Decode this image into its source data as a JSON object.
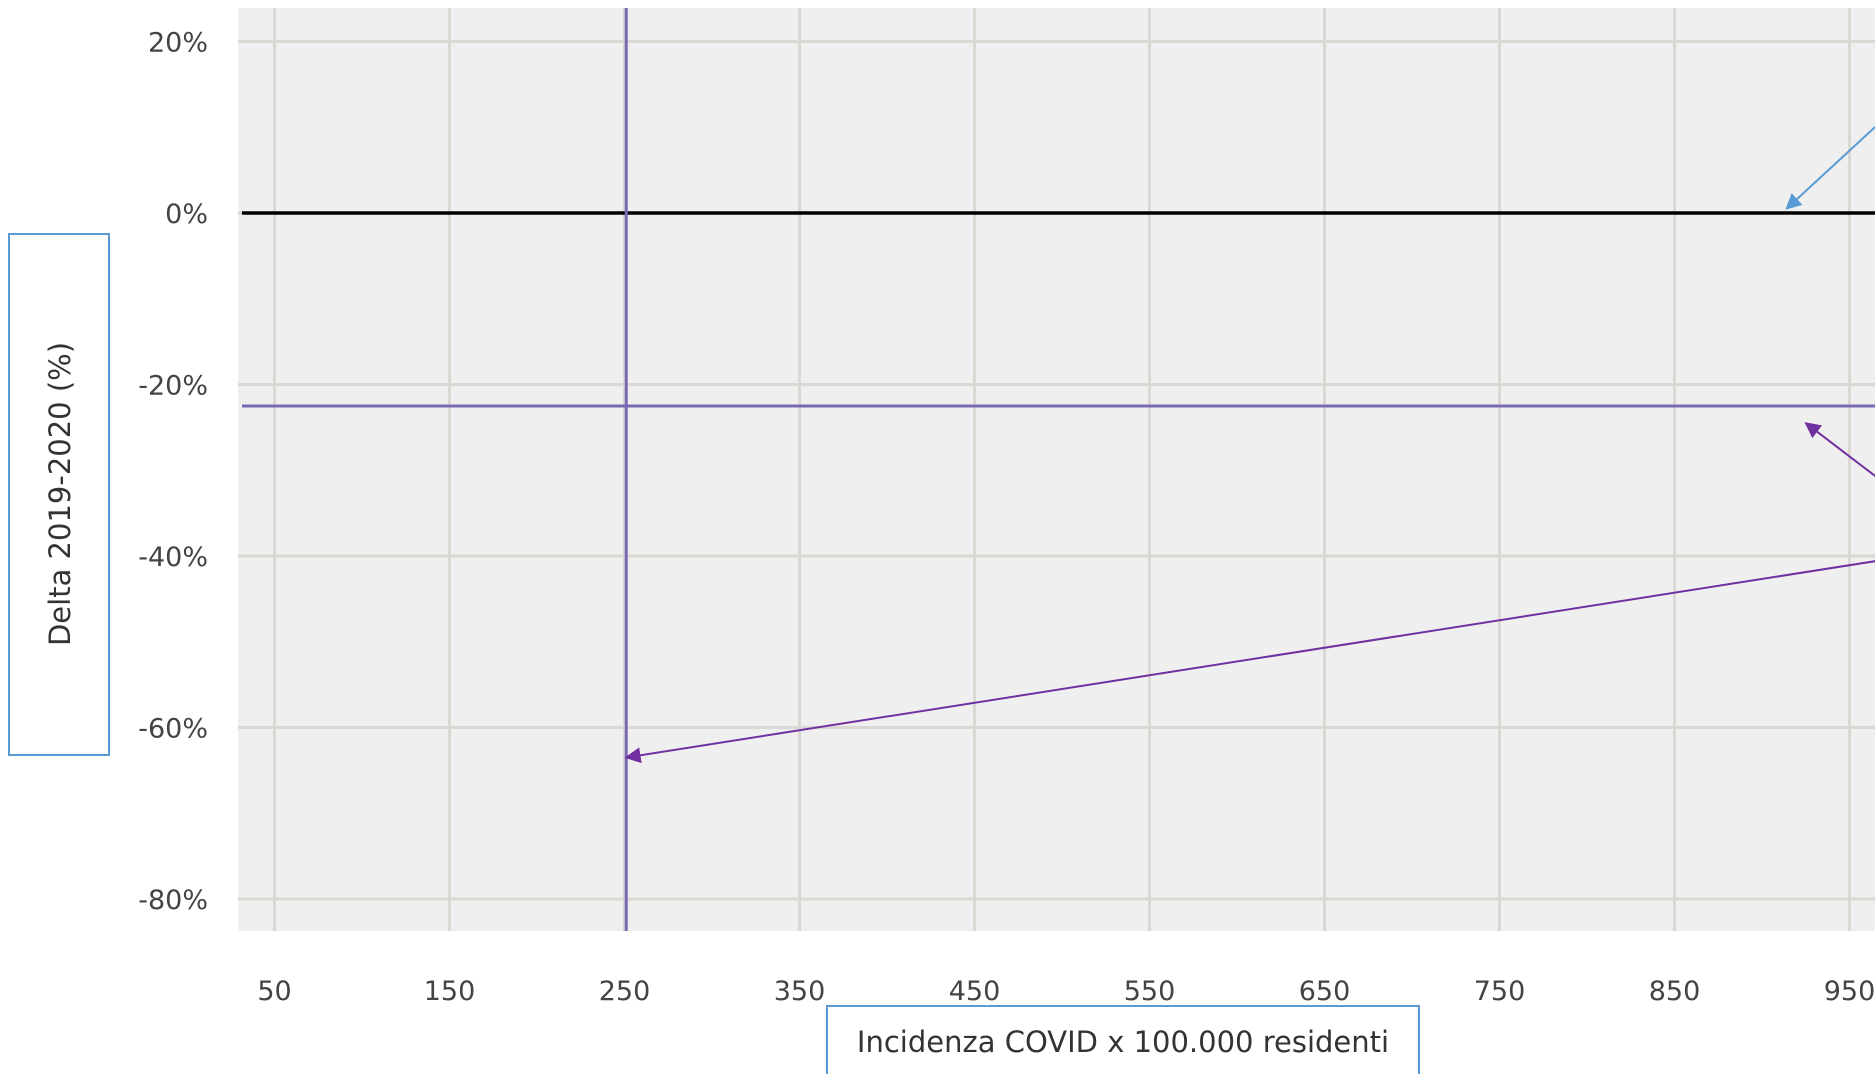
{
  "chart_data": {
    "type": "scatter",
    "title": "",
    "xlabel": "Incidenza COVID x 100.000 residenti",
    "ylabel": "Delta 2019-2020 (%)",
    "xlim": [
      30,
      1000
    ],
    "ylim": [
      -0.84,
      0.24
    ],
    "x_ticks": [
      50,
      150,
      250,
      350,
      450,
      550,
      650,
      750,
      850,
      950
    ],
    "x_tick_labels": [
      "50",
      "150",
      "250",
      "350",
      "450",
      "550",
      "650",
      "750",
      "850",
      "950"
    ],
    "y_ticks": [
      0.2,
      0,
      -0.2,
      -0.4,
      -0.6,
      -0.8
    ],
    "y_tick_labels": [
      "20%",
      "0%",
      "-20%",
      "-40%",
      "-60%",
      "-80%"
    ],
    "grid": true,
    "background": "#efefef",
    "grid_color": "#d9d8d2",
    "reference_lines": [
      {
        "orientation": "horizontal",
        "value": 0,
        "color": "#000000",
        "style": "solid"
      },
      {
        "orientation": "horizontal",
        "value": -0.225,
        "color": "#7b68b5",
        "style": "solid"
      },
      {
        "orientation": "vertical",
        "value": 251,
        "color": "#7b68b5",
        "style": "solid"
      }
    ],
    "annotation_arrows": [
      {
        "from": [
          999,
          0.165
        ],
        "to": [
          914,
          0.005
        ],
        "color": "#5b9bd5"
      },
      {
        "from": [
          999,
          -0.36
        ],
        "to": [
          925,
          -0.245
        ],
        "color": "#7030a0"
      },
      {
        "from": [
          999,
          -0.395
        ],
        "to": [
          251,
          -0.635
        ],
        "color": "#7030a0"
      }
    ]
  }
}
